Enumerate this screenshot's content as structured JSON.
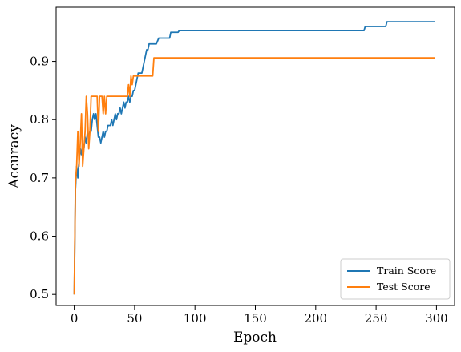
{
  "chart_data": {
    "type": "line",
    "title": "",
    "xlabel": "Epoch",
    "ylabel": "Accuracy",
    "xlim": [
      -15,
      315
    ],
    "ylim": [
      0.481,
      0.993
    ],
    "xticks": [
      0,
      50,
      100,
      150,
      200,
      250,
      300
    ],
    "yticks": [
      0.5,
      0.6,
      0.7,
      0.8,
      0.9
    ],
    "grid": false,
    "legend_position": "lower right",
    "series": [
      {
        "name": "Train Score",
        "color": "#1f77b4",
        "points": [
          [
            0,
            0.5
          ],
          [
            1,
            0.68
          ],
          [
            2,
            0.72
          ],
          [
            3,
            0.7
          ],
          [
            4,
            0.73
          ],
          [
            5,
            0.75
          ],
          [
            6,
            0.74
          ],
          [
            7,
            0.76
          ],
          [
            8,
            0.75
          ],
          [
            9,
            0.77
          ],
          [
            10,
            0.76
          ],
          [
            11,
            0.78
          ],
          [
            12,
            0.77
          ],
          [
            13,
            0.78
          ],
          [
            14,
            0.78
          ],
          [
            15,
            0.8
          ],
          [
            16,
            0.81
          ],
          [
            17,
            0.8
          ],
          [
            18,
            0.81
          ],
          [
            19,
            0.79
          ],
          [
            20,
            0.77
          ],
          [
            21,
            0.77
          ],
          [
            22,
            0.76
          ],
          [
            23,
            0.77
          ],
          [
            24,
            0.78
          ],
          [
            25,
            0.77
          ],
          [
            26,
            0.78
          ],
          [
            27,
            0.78
          ],
          [
            28,
            0.79
          ],
          [
            29,
            0.79
          ],
          [
            30,
            0.79
          ],
          [
            31,
            0.8
          ],
          [
            32,
            0.79
          ],
          [
            33,
            0.8
          ],
          [
            34,
            0.81
          ],
          [
            35,
            0.8
          ],
          [
            36,
            0.81
          ],
          [
            37,
            0.81
          ],
          [
            38,
            0.82
          ],
          [
            39,
            0.81
          ],
          [
            40,
            0.82
          ],
          [
            41,
            0.83
          ],
          [
            42,
            0.82
          ],
          [
            43,
            0.83
          ],
          [
            44,
            0.83
          ],
          [
            45,
            0.84
          ],
          [
            46,
            0.83
          ],
          [
            47,
            0.84
          ],
          [
            48,
            0.84
          ],
          [
            49,
            0.85
          ],
          [
            50,
            0.85
          ],
          [
            51,
            0.86
          ],
          [
            52,
            0.87
          ],
          [
            53,
            0.88
          ],
          [
            54,
            0.88
          ],
          [
            55,
            0.88
          ],
          [
            56,
            0.88
          ],
          [
            57,
            0.89
          ],
          [
            58,
            0.9
          ],
          [
            59,
            0.91
          ],
          [
            60,
            0.92
          ],
          [
            61,
            0.92
          ],
          [
            62,
            0.93
          ],
          [
            63,
            0.93
          ],
          [
            64,
            0.93
          ],
          [
            65,
            0.93
          ],
          [
            66,
            0.93
          ],
          [
            67,
            0.93
          ],
          [
            68,
            0.93
          ],
          [
            70,
            0.94
          ],
          [
            74,
            0.94
          ],
          [
            75,
            0.94
          ],
          [
            79,
            0.94
          ],
          [
            80,
            0.95
          ],
          [
            86,
            0.95
          ],
          [
            87,
            0.953
          ],
          [
            240,
            0.953
          ],
          [
            241,
            0.96
          ],
          [
            258,
            0.96
          ],
          [
            259,
            0.968
          ],
          [
            299,
            0.968
          ]
        ]
      },
      {
        "name": "Test Score",
        "color": "#ff7f0e",
        "points": [
          [
            0,
            0.5
          ],
          [
            1,
            0.69
          ],
          [
            2,
            0.72
          ],
          [
            3,
            0.78
          ],
          [
            4,
            0.72
          ],
          [
            5,
            0.76
          ],
          [
            6,
            0.81
          ],
          [
            7,
            0.72
          ],
          [
            8,
            0.75
          ],
          [
            9,
            0.78
          ],
          [
            10,
            0.84
          ],
          [
            11,
            0.81
          ],
          [
            12,
            0.75
          ],
          [
            13,
            0.78
          ],
          [
            14,
            0.84
          ],
          [
            15,
            0.84
          ],
          [
            16,
            0.84
          ],
          [
            17,
            0.84
          ],
          [
            18,
            0.84
          ],
          [
            19,
            0.84
          ],
          [
            20,
            0.78
          ],
          [
            21,
            0.84
          ],
          [
            22,
            0.84
          ],
          [
            23,
            0.84
          ],
          [
            24,
            0.81
          ],
          [
            25,
            0.84
          ],
          [
            26,
            0.81
          ],
          [
            27,
            0.84
          ],
          [
            28,
            0.84
          ],
          [
            29,
            0.84
          ],
          [
            30,
            0.84
          ],
          [
            44,
            0.84
          ],
          [
            45,
            0.86
          ],
          [
            46,
            0.84
          ],
          [
            47,
            0.875
          ],
          [
            48,
            0.86
          ],
          [
            49,
            0.875
          ],
          [
            50,
            0.875
          ],
          [
            65,
            0.875
          ],
          [
            66,
            0.906
          ],
          [
            299,
            0.906
          ]
        ]
      }
    ]
  }
}
